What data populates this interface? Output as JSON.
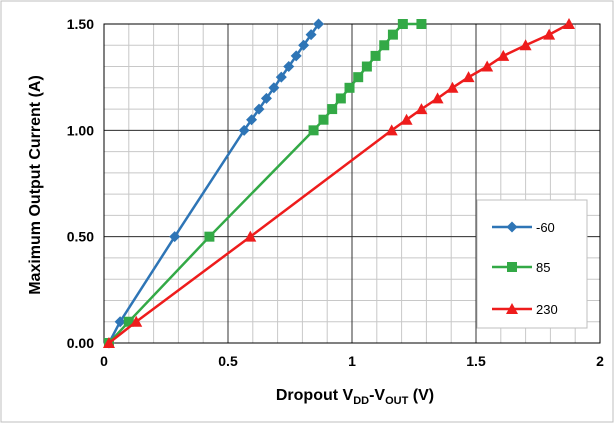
{
  "chart_data": {
    "type": "line",
    "xlabel": {
      "main": "Dropout V",
      "sub1": "DD",
      "mid": "-V",
      "sub2": "OUT",
      "tail": " (V)"
    },
    "ylabel": "Maximum Output Current (A)",
    "xlim": [
      0,
      2
    ],
    "ylim": [
      0,
      1.5
    ],
    "x_ticks": [
      {
        "value": 0,
        "label": "0"
      },
      {
        "value": 0.5,
        "label": "0.5"
      },
      {
        "value": 1,
        "label": "1"
      },
      {
        "value": 1.5,
        "label": "1.5"
      },
      {
        "value": 2,
        "label": "2"
      }
    ],
    "y_ticks": [
      {
        "value": 0,
        "label": "0.00"
      },
      {
        "value": 0.5,
        "label": "0.50"
      },
      {
        "value": 1.0,
        "label": "1.00"
      },
      {
        "value": 1.5,
        "label": "1.50"
      }
    ],
    "minor_grid": true,
    "legend_position": "right",
    "series": [
      {
        "name": "-60",
        "color": "#2e75b6",
        "marker": "diamond",
        "points": [
          [
            0.02,
            0.0
          ],
          [
            0.065,
            0.1
          ],
          [
            0.285,
            0.5
          ],
          [
            0.565,
            1.0
          ],
          [
            0.595,
            1.05
          ],
          [
            0.625,
            1.1
          ],
          [
            0.655,
            1.15
          ],
          [
            0.685,
            1.2
          ],
          [
            0.715,
            1.25
          ],
          [
            0.745,
            1.3
          ],
          [
            0.775,
            1.35
          ],
          [
            0.805,
            1.4
          ],
          [
            0.835,
            1.45
          ],
          [
            0.865,
            1.5
          ]
        ]
      },
      {
        "name": "85",
        "color": "#33a946",
        "marker": "square",
        "points": [
          [
            0.02,
            0.0
          ],
          [
            0.1,
            0.1
          ],
          [
            0.425,
            0.5
          ],
          [
            0.845,
            1.0
          ],
          [
            0.885,
            1.05
          ],
          [
            0.92,
            1.1
          ],
          [
            0.955,
            1.15
          ],
          [
            0.99,
            1.2
          ],
          [
            1.025,
            1.25
          ],
          [
            1.06,
            1.3
          ],
          [
            1.095,
            1.35
          ],
          [
            1.13,
            1.4
          ],
          [
            1.165,
            1.45
          ],
          [
            1.205,
            1.5
          ],
          [
            1.28,
            1.5
          ]
        ]
      },
      {
        "name": "230",
        "color": "#ee1c1c",
        "marker": "triangle",
        "points": [
          [
            0.02,
            0.0
          ],
          [
            0.13,
            0.1
          ],
          [
            0.59,
            0.5
          ],
          [
            1.16,
            1.0
          ],
          [
            1.22,
            1.05
          ],
          [
            1.28,
            1.1
          ],
          [
            1.345,
            1.15
          ],
          [
            1.405,
            1.2
          ],
          [
            1.47,
            1.25
          ],
          [
            1.545,
            1.3
          ],
          [
            1.61,
            1.35
          ],
          [
            1.7,
            1.4
          ],
          [
            1.795,
            1.45
          ],
          [
            1.875,
            1.5
          ]
        ]
      }
    ]
  }
}
